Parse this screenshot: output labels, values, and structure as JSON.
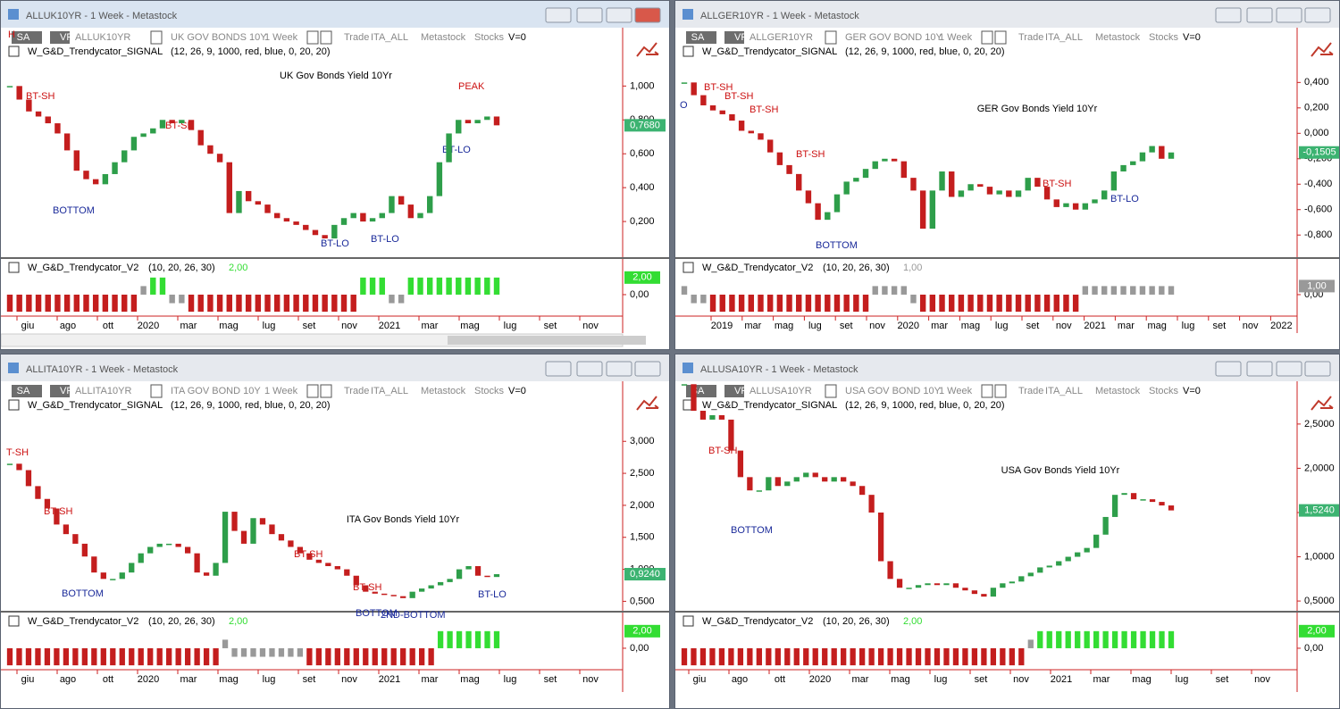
{
  "windows": [
    {
      "title": "ALLUK10YR - 1 Week - Metastock",
      "toolbar": [
        "SA",
        "VP",
        "ALLUK10YR",
        "UK GOV BONDS 10Y",
        "1 Week",
        "Trade",
        "ITA_ALL",
        "Metastock",
        "Stocks",
        "V=0"
      ],
      "price_chart": {
        "type": "candlestick",
        "indicator_name": "W_G&D_Trendycator_SIGNAL",
        "params": "(12, 26, 9, 1000, red, blue, 0, 20, 20)",
        "title": "UK Gov Bonds Yield 10Yr",
        "up_color": "#2e9e4a",
        "down_color": "#c41e1e",
        "closes": [
          1.0,
          0.92,
          0.85,
          0.82,
          0.78,
          0.72,
          0.62,
          0.5,
          0.45,
          0.42,
          0.48,
          0.55,
          0.62,
          0.7,
          0.72,
          0.75,
          0.8,
          0.78,
          0.8,
          0.74,
          0.65,
          0.6,
          0.55,
          0.25,
          0.38,
          0.32,
          0.3,
          0.25,
          0.22,
          0.2,
          0.18,
          0.15,
          0.12,
          0.1,
          0.18,
          0.22,
          0.25,
          0.2,
          0.22,
          0.25,
          0.35,
          0.3,
          0.22,
          0.25,
          0.35,
          0.55,
          0.72,
          0.8,
          0.78,
          0.8,
          0.82,
          0.768
        ],
        "ylim": [
          0.0,
          1.16
        ],
        "yticks": [
          {
            "value": 0.2,
            "label": "0,200"
          },
          {
            "value": 0.4,
            "label": "0,400"
          },
          {
            "value": 0.6,
            "label": "0,600"
          },
          {
            "value": 0.8,
            "label": "0,800"
          },
          {
            "value": 1.0,
            "label": "1,000"
          }
        ],
        "last": {
          "value": 0.768,
          "label": "0,7680",
          "color": "#3cb371"
        },
        "annotations": [
          {
            "text": "H",
            "color": "#cc1111"
          },
          {
            "text": "BT-SH",
            "color": "#cc1111"
          },
          {
            "text": "BOTTOM",
            "color": "#1a2a9a"
          },
          {
            "text": "BT-SH",
            "color": "#cc1111"
          },
          {
            "text": "BT-LO",
            "color": "#1a2a9a"
          },
          {
            "text": "BT-LO",
            "color": "#1a2a9a"
          },
          {
            "text": "PEAK",
            "color": "#cc1111"
          },
          {
            "text": "BT-LO",
            "color": "#1a2a9a"
          }
        ]
      },
      "indicator": {
        "type": "bar",
        "name": "W_G&D_Trendycator_V2",
        "params": "(10, 20, 26, 30)",
        "last": {
          "value": 2,
          "label": "2,00",
          "color": "#33dd33"
        },
        "up_color": "#33dd33",
        "neutral_color": "#999999",
        "down_color": "#c41e1e",
        "values": [
          -2,
          -2,
          -2,
          -2,
          -2,
          -2,
          -2,
          -2,
          -2,
          -2,
          -2,
          -2,
          -2,
          -2,
          1,
          2,
          2,
          -1,
          -1,
          -2,
          -2,
          -2,
          -2,
          -2,
          -2,
          -2,
          -2,
          -2,
          -2,
          -2,
          -2,
          -2,
          -2,
          -2,
          -2,
          -2,
          -2,
          2,
          2,
          2,
          -1,
          -1,
          2,
          2,
          2,
          2,
          2,
          2,
          2,
          2,
          2,
          2
        ],
        "ylim": [
          -2.2,
          2.4
        ],
        "yticks": [
          {
            "value": 0,
            "label": "0,00"
          }
        ]
      },
      "date_labels": [
        "giu",
        "ago",
        "ott",
        "2020",
        "mar",
        "mag",
        "lug",
        "set",
        "nov",
        "2021",
        "mar",
        "mag",
        "lug",
        "set",
        "nov"
      ]
    },
    {
      "title": "ALLGER10YR - 1 Week - Metastock",
      "toolbar": [
        "SA",
        "VP",
        "ALLGER10YR",
        "GER GOV BOND 10Y",
        "1 Week",
        "Trade",
        "ITA_ALL",
        "Metastock",
        "Stocks",
        "V=0"
      ],
      "price_chart": {
        "type": "candlestick",
        "indicator_name": "W_G&D_Trendycator_SIGNAL",
        "params": "(12, 26, 9, 1000, red, blue, 0, 20, 20)",
        "title": "GER Gov Bonds Yield 10Yr",
        "up_color": "#2e9e4a",
        "down_color": "#c41e1e",
        "closes": [
          0.4,
          0.3,
          0.22,
          0.18,
          0.15,
          0.1,
          0.02,
          0.0,
          -0.05,
          -0.15,
          -0.25,
          -0.32,
          -0.45,
          -0.55,
          -0.68,
          -0.62,
          -0.48,
          -0.38,
          -0.35,
          -0.28,
          -0.22,
          -0.2,
          -0.22,
          -0.35,
          -0.45,
          -0.75,
          -0.45,
          -0.3,
          -0.5,
          -0.45,
          -0.4,
          -0.42,
          -0.48,
          -0.45,
          -0.5,
          -0.45,
          -0.35,
          -0.42,
          -0.52,
          -0.58,
          -0.55,
          -0.6,
          -0.55,
          -0.52,
          -0.45,
          -0.3,
          -0.25,
          -0.22,
          -0.15,
          -0.1,
          -0.2,
          -0.1505
        ],
        "ylim": [
          -0.96,
          0.585
        ],
        "yticks": [
          {
            "value": -0.8,
            "label": "-0,800"
          },
          {
            "value": -0.6,
            "label": "-0,600"
          },
          {
            "value": -0.4,
            "label": "-0,400"
          },
          {
            "value": -0.2,
            "label": "-0,200"
          },
          {
            "value": 0,
            "label": "0,000"
          },
          {
            "value": 0.2,
            "label": "0,200"
          },
          {
            "value": 0.4,
            "label": "0,400"
          }
        ],
        "last": {
          "value": -0.1505,
          "label": "-0,1505",
          "color": "#3cb371"
        },
        "annotations": [
          {
            "text": "O",
            "color": "#1a2a9a"
          },
          {
            "text": "BT-SH",
            "color": "#cc1111"
          },
          {
            "text": "BT-SH",
            "color": "#cc1111"
          },
          {
            "text": "BT-SH",
            "color": "#cc1111"
          },
          {
            "text": "BT-SH",
            "color": "#cc1111"
          },
          {
            "text": "BOTTOM",
            "color": "#1a2a9a"
          },
          {
            "text": "BT-SH",
            "color": "#cc1111"
          },
          {
            "text": "BT-LO",
            "color": "#1a2a9a"
          }
        ]
      },
      "indicator": {
        "type": "bar",
        "name": "W_G&D_Trendycator_V2",
        "params": "(10, 20, 26, 30)",
        "last": {
          "value": 1,
          "label": "1,00",
          "color": "#999999"
        },
        "up_color": "#33dd33",
        "neutral_color": "#999999",
        "down_color": "#c41e1e",
        "values": [
          1,
          -1,
          -1,
          -2,
          -2,
          -2,
          -2,
          -2,
          -2,
          -2,
          -2,
          -2,
          -2,
          -2,
          -2,
          -2,
          -2,
          -2,
          -2,
          -2,
          1,
          1,
          1,
          1,
          -1,
          -2,
          -2,
          -2,
          -2,
          -2,
          -2,
          -2,
          -2,
          -2,
          -2,
          -2,
          -2,
          -2,
          -2,
          -2,
          -2,
          -2,
          1,
          1,
          1,
          1,
          1,
          1,
          1,
          1,
          1,
          1
        ],
        "ylim": [
          -2.2,
          2.4
        ],
        "yticks": [
          {
            "value": 0,
            "label": "0,00"
          }
        ]
      },
      "date_labels": [
        "2019",
        "mar",
        "mag",
        "lug",
        "set",
        "nov",
        "2020",
        "mar",
        "mag",
        "lug",
        "set",
        "nov",
        "2021",
        "mar",
        "mag",
        "lug",
        "set",
        "nov",
        "2022"
      ]
    },
    {
      "title": "ALLITA10YR - 1 Week - Metastock",
      "toolbar": [
        "SA",
        "VP",
        "ALLITA10YR",
        "ITA GOV BOND 10Y",
        "1 Week",
        "Trade",
        "ITA_ALL",
        "Metastock",
        "Stocks",
        "V=0"
      ],
      "price_chart": {
        "type": "candlestick",
        "indicator_name": "W_G&D_Trendycator_SIGNAL",
        "params": "(12, 26, 9, 1000, red, blue, 0, 20, 20)",
        "title": "ITA Gov Bonds Yield 10Yr",
        "up_color": "#2e9e4a",
        "down_color": "#c41e1e",
        "closes": [
          2.65,
          2.55,
          2.3,
          2.1,
          1.95,
          1.7,
          1.55,
          1.4,
          1.2,
          0.95,
          0.85,
          0.85,
          0.95,
          1.1,
          1.25,
          1.35,
          1.4,
          1.4,
          1.35,
          1.25,
          0.95,
          0.9,
          1.1,
          1.9,
          1.6,
          1.4,
          1.8,
          1.7,
          1.55,
          1.45,
          1.35,
          1.25,
          1.15,
          1.1,
          1.05,
          1.0,
          0.9,
          0.75,
          0.65,
          0.62,
          0.6,
          0.58,
          0.55,
          0.65,
          0.7,
          0.75,
          0.8,
          0.85,
          1.0,
          1.05,
          0.9,
          0.88,
          0.924
        ],
        "ylim": [
          0.38,
          3.45
        ],
        "yticks": [
          {
            "value": 0.5,
            "label": "0,500"
          },
          {
            "value": 1.0,
            "label": "1,000"
          },
          {
            "value": 1.5,
            "label": "1,500"
          },
          {
            "value": 2.0,
            "label": "2,000"
          },
          {
            "value": 2.5,
            "label": "2,500"
          },
          {
            "value": 3.0,
            "label": "3,000"
          }
        ],
        "last": {
          "value": 0.924,
          "label": "0,9240",
          "color": "#3cb371"
        },
        "annotations": [
          {
            "text": "T-SH",
            "color": "#cc1111"
          },
          {
            "text": "BT-SH",
            "color": "#cc1111"
          },
          {
            "text": "BOTTOM",
            "color": "#1a2a9a"
          },
          {
            "text": "BT-SH",
            "color": "#cc1111"
          },
          {
            "text": "BT-SH",
            "color": "#cc1111"
          },
          {
            "text": "BOTTOM",
            "color": "#1a2a9a"
          },
          {
            "text": "2ND-BOTTOM",
            "color": "#1a2a9a"
          },
          {
            "text": "BT-LO",
            "color": "#1a2a9a"
          }
        ]
      },
      "indicator": {
        "type": "bar",
        "name": "W_G&D_Trendycator_V2",
        "params": "(10, 20, 26, 30)",
        "last": {
          "value": 2,
          "label": "2,00",
          "color": "#33dd33"
        },
        "up_color": "#33dd33",
        "neutral_color": "#999999",
        "down_color": "#c41e1e",
        "values": [
          -2,
          -2,
          -2,
          -2,
          -2,
          -2,
          -2,
          -2,
          -2,
          -2,
          -2,
          -2,
          -2,
          -2,
          -2,
          -2,
          -2,
          -2,
          -2,
          -2,
          -2,
          -2,
          -2,
          1,
          -1,
          -1,
          -1,
          -1,
          -1,
          -1,
          -1,
          -1,
          -2,
          -2,
          -2,
          -2,
          -2,
          -2,
          -2,
          -2,
          -2,
          -2,
          -2,
          -2,
          -2,
          -2,
          2,
          2,
          2,
          2,
          2,
          2,
          2
        ],
        "ylim": [
          -2.2,
          2.4
        ],
        "yticks": [
          {
            "value": 0,
            "label": "0,00"
          }
        ]
      },
      "date_labels": [
        "giu",
        "ago",
        "ott",
        "2020",
        "mar",
        "mag",
        "lug",
        "set",
        "nov",
        "2021",
        "mar",
        "mag",
        "lug",
        "set",
        "nov"
      ]
    },
    {
      "title": "ALLUSA10YR - 1 Week - Metastock",
      "toolbar": [
        "SA",
        "VP",
        "ALLUSA10YR",
        "USA GOV BOND 10Y",
        "1 Week",
        "Trade",
        "ITA_ALL",
        "Metastock",
        "Stocks",
        "V=0"
      ],
      "price_chart": {
        "type": "candlestick",
        "indicator_name": "W_G&D_Trendycator_SIGNAL",
        "params": "(12, 26, 9, 1000, red, blue, 0, 20, 20)",
        "title": "USA Gov Bonds Yield 10Yr",
        "up_color": "#2e9e4a",
        "down_color": "#c41e1e",
        "closes": [
          2.95,
          2.65,
          2.55,
          2.6,
          2.55,
          2.2,
          1.9,
          1.75,
          1.75,
          1.9,
          1.8,
          1.85,
          1.9,
          1.95,
          1.9,
          1.85,
          1.9,
          1.85,
          1.8,
          1.7,
          1.5,
          0.95,
          0.75,
          0.65,
          0.65,
          0.68,
          0.7,
          0.68,
          0.7,
          0.65,
          0.62,
          0.58,
          0.55,
          0.65,
          0.7,
          0.72,
          0.78,
          0.82,
          0.88,
          0.9,
          0.95,
          1.0,
          1.05,
          1.1,
          1.25,
          1.45,
          1.7,
          1.72,
          1.65,
          1.65,
          1.62,
          1.58,
          1.524
        ],
        "ylim": [
          0.41,
          2.63
        ],
        "yticks": [
          {
            "value": 0.5,
            "label": "0,5000"
          },
          {
            "value": 1.0,
            "label": "1,0000"
          },
          {
            "value": 1.5,
            "label": "1,5000"
          },
          {
            "value": 2.0,
            "label": "2,0000"
          },
          {
            "value": 2.5,
            "label": "2,5000"
          }
        ],
        "last": {
          "value": 1.524,
          "label": "1,5240",
          "color": "#3cb371"
        },
        "annotations": [
          {
            "text": "BT-SH",
            "color": "#cc1111"
          },
          {
            "text": "BOTTOM",
            "color": "#1a2a9a"
          }
        ]
      },
      "indicator": {
        "type": "bar",
        "name": "W_G&D_Trendycator_V2",
        "params": "(10, 20, 26, 30)",
        "last": {
          "value": 2,
          "label": "2,00",
          "color": "#33dd33"
        },
        "up_color": "#33dd33",
        "neutral_color": "#999999",
        "down_color": "#c41e1e",
        "values": [
          -2,
          -2,
          -2,
          -2,
          -2,
          -2,
          -2,
          -2,
          -2,
          -2,
          -2,
          -2,
          -2,
          -2,
          -2,
          -2,
          -2,
          -2,
          -2,
          -2,
          -2,
          -2,
          -2,
          -2,
          -2,
          -2,
          -2,
          -2,
          -2,
          -2,
          -2,
          -2,
          -2,
          -2,
          -2,
          -2,
          -2,
          1,
          2,
          2,
          2,
          2,
          2,
          2,
          2,
          2,
          2,
          2,
          2,
          2,
          2,
          2,
          2
        ],
        "ylim": [
          -2.2,
          2.4
        ],
        "yticks": [
          {
            "value": 0,
            "label": "0,00"
          }
        ]
      },
      "date_labels": [
        "giu",
        "ago",
        "ott",
        "2020",
        "mar",
        "mag",
        "lug",
        "set",
        "nov",
        "2021",
        "mar",
        "mag",
        "lug",
        "set",
        "nov"
      ]
    }
  ]
}
